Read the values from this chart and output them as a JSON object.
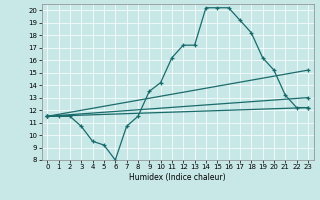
{
  "xlabel": "Humidex (Indice chaleur)",
  "xlim": [
    -0.5,
    23.5
  ],
  "ylim": [
    8,
    20.5
  ],
  "yticks": [
    8,
    9,
    10,
    11,
    12,
    13,
    14,
    15,
    16,
    17,
    18,
    19,
    20
  ],
  "xticks": [
    0,
    1,
    2,
    3,
    4,
    5,
    6,
    7,
    8,
    9,
    10,
    11,
    12,
    13,
    14,
    15,
    16,
    17,
    18,
    19,
    20,
    21,
    22,
    23
  ],
  "bg_color": "#c8e8e8",
  "line_color": "#1a6b6b",
  "lines": [
    {
      "x": [
        0,
        1,
        2,
        3,
        4,
        5,
        6,
        7,
        8,
        9,
        10,
        11,
        12,
        13,
        14,
        15,
        16,
        17,
        18,
        19,
        20,
        21,
        22,
        23
      ],
      "y": [
        11.5,
        11.5,
        11.5,
        10.7,
        9.5,
        9.2,
        8.0,
        10.7,
        11.5,
        13.5,
        14.2,
        16.2,
        17.2,
        17.2,
        20.2,
        20.2,
        20.2,
        19.2,
        18.2,
        16.2,
        15.2,
        13.2,
        12.2,
        12.2
      ],
      "marker": true
    },
    {
      "x": [
        0,
        23
      ],
      "y": [
        11.5,
        12.2
      ],
      "marker": true
    },
    {
      "x": [
        0,
        23
      ],
      "y": [
        11.5,
        15.2
      ],
      "marker": true
    },
    {
      "x": [
        0,
        23
      ],
      "y": [
        11.5,
        13.0
      ],
      "marker": true
    }
  ]
}
